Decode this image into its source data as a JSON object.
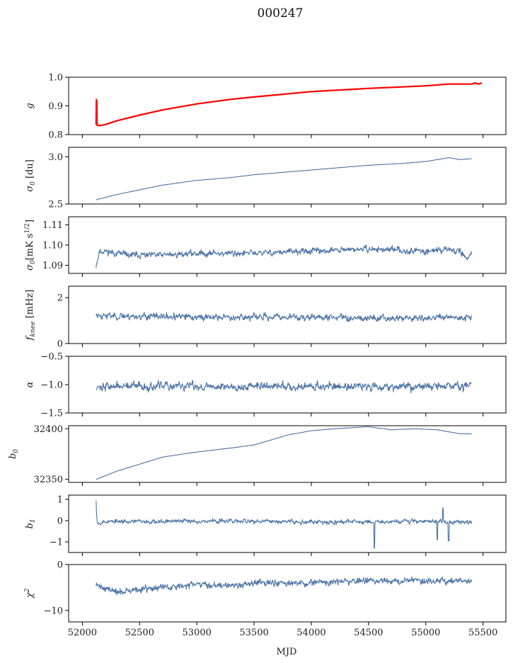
{
  "figure": {
    "title": "000247",
    "xlabel": "MJD"
  },
  "colors": {
    "series": "#4c72a4",
    "highlight": "#ff0000",
    "axis": "#000000"
  },
  "chart_data": [
    {
      "type": "line",
      "ylabel": "g",
      "ylim": [
        0.8,
        1.0
      ],
      "yticks": [
        "0.8",
        "0.9",
        "1.0"
      ],
      "xlim": [
        51880,
        55700
      ],
      "series": [
        {
          "color": "#4c72a4",
          "style": "smooth",
          "x": [
            52120,
            52150,
            52200,
            52300,
            52500,
            52700,
            53000,
            53300,
            53500,
            54000,
            54500,
            55000,
            55200,
            55400
          ],
          "y": [
            0.833,
            0.832,
            0.836,
            0.849,
            0.869,
            0.887,
            0.908,
            0.924,
            0.932,
            0.951,
            0.962,
            0.971,
            0.977,
            0.977
          ]
        },
        {
          "color": "#ff0000",
          "style": "highlight",
          "x": [
            52120,
            52122,
            52124,
            52126,
            52128,
            52132,
            52150,
            52200,
            52300,
            52500,
            52700,
            53000,
            53300,
            53500,
            54000,
            54500,
            55000,
            55200,
            55400,
            55430,
            55460,
            55490
          ],
          "y": [
            0.835,
            0.922,
            0.834,
            0.915,
            0.836,
            0.833,
            0.831,
            0.835,
            0.848,
            0.868,
            0.886,
            0.907,
            0.923,
            0.931,
            0.95,
            0.961,
            0.97,
            0.976,
            0.976,
            0.98,
            0.976,
            0.98
          ]
        }
      ]
    },
    {
      "type": "line",
      "ylabel": "σ0 [du]",
      "ylim": [
        2.5,
        3.1
      ],
      "yticks": [
        "2.5",
        "3.0"
      ],
      "xlim": [
        51880,
        55700
      ],
      "series": [
        {
          "color": "#4c72a4",
          "style": "smooth",
          "x": [
            52120,
            52300,
            52500,
            52700,
            53000,
            53300,
            53500,
            53800,
            54000,
            54300,
            54500,
            54800,
            55000,
            55200,
            55300,
            55400
          ],
          "y": [
            2.545,
            2.6,
            2.65,
            2.7,
            2.75,
            2.78,
            2.81,
            2.84,
            2.86,
            2.89,
            2.91,
            2.93,
            2.95,
            2.99,
            2.97,
            2.98
          ]
        }
      ]
    },
    {
      "type": "line",
      "ylabel": "σ0[mK s^1/2]",
      "ylim": [
        1.086,
        1.114
      ],
      "yticks": [
        "1.09",
        "1.10",
        "1.11"
      ],
      "xlim": [
        51880,
        55700
      ],
      "series": [
        {
          "color": "#4c72a4",
          "style": "noise",
          "noise": 0.0015,
          "seed": 11,
          "x": [
            52120,
            52150,
            52200,
            52400,
            52700,
            53000,
            53500,
            54000,
            54500,
            55000,
            55200,
            55300,
            55350,
            55400
          ],
          "y": [
            1.09,
            1.097,
            1.097,
            1.095,
            1.095,
            1.096,
            1.096,
            1.097,
            1.098,
            1.097,
            1.098,
            1.097,
            1.093,
            1.096
          ]
        }
      ]
    },
    {
      "type": "line",
      "ylabel": "f_knee [mHz]",
      "ylim": [
        0,
        2.5
      ],
      "yticks": [
        "0",
        "2"
      ],
      "xlim": [
        51880,
        55700
      ],
      "series": [
        {
          "color": "#4c72a4",
          "style": "noise",
          "noise": 0.14,
          "seed": 23,
          "x": [
            52120,
            52300,
            53000,
            54000,
            55000,
            55400
          ],
          "y": [
            1.25,
            1.2,
            1.15,
            1.15,
            1.1,
            1.15
          ]
        }
      ]
    },
    {
      "type": "line",
      "ylabel": "α",
      "ylim": [
        -1.5,
        -0.5
      ],
      "yticks": [
        "-1.5",
        "-1.0",
        "-0.5"
      ],
      "xlim": [
        51880,
        55700
      ],
      "series": [
        {
          "color": "#4c72a4",
          "style": "noise",
          "noise": 0.07,
          "seed": 37,
          "x": [
            52120,
            53000,
            54000,
            55000,
            55400
          ],
          "y": [
            -1.03,
            -1.03,
            -1.03,
            -1.03,
            -1.02
          ]
        }
      ]
    },
    {
      "type": "line",
      "ylabel": "b0",
      "ylim": [
        32347,
        32403
      ],
      "yticks": [
        "32350",
        "32400"
      ],
      "xlim": [
        51880,
        55700
      ],
      "series": [
        {
          "color": "#4c72a4",
          "style": "smooth",
          "x": [
            52120,
            52300,
            52500,
            52700,
            53000,
            53300,
            53500,
            53800,
            54000,
            54200,
            54500,
            54700,
            54900,
            55100,
            55300,
            55400
          ],
          "y": [
            32350,
            32358,
            32365,
            32372,
            32377,
            32381,
            32384,
            32394,
            32398,
            32400,
            32402,
            32399,
            32400,
            32399,
            32395,
            32395
          ]
        }
      ]
    },
    {
      "type": "line",
      "ylabel": "b1",
      "ylim": [
        -1.5,
        1.2
      ],
      "yticks": [
        "-1",
        "0",
        "1"
      ],
      "xlim": [
        51880,
        55700
      ],
      "series": [
        {
          "color": "#4c72a4",
          "style": "noise",
          "noise": 0.1,
          "seed": 53,
          "x": [
            52120,
            52125,
            52135,
            52200,
            53000,
            54000,
            54500,
            55000,
            55400
          ],
          "y": [
            1.0,
            0.2,
            -0.1,
            -0.05,
            -0.02,
            -0.05,
            -0.05,
            -0.02,
            -0.1
          ],
          "spikes": [
            {
              "x": 54550,
              "y": -1.3
            },
            {
              "x": 55100,
              "y": -0.9
            },
            {
              "x": 55200,
              "y": -0.95
            },
            {
              "x": 55150,
              "y": 0.6
            }
          ]
        }
      ]
    },
    {
      "type": "line",
      "ylabel": "χ²",
      "ylim": [
        -12.5,
        0
      ],
      "yticks": [
        "-10",
        "0"
      ],
      "xlim": [
        51880,
        55700
      ],
      "xticks": [
        "52000",
        "52500",
        "53000",
        "53500",
        "54000",
        "54500",
        "55000",
        "55500"
      ],
      "series": [
        {
          "color": "#4c72a4",
          "style": "noise",
          "noise": 0.7,
          "seed": 71,
          "x": [
            52120,
            52300,
            52700,
            53000,
            53500,
            54000,
            54500,
            55000,
            55400
          ],
          "y": [
            -4.5,
            -6.0,
            -5.0,
            -4.5,
            -4.2,
            -4.0,
            -3.5,
            -3.5,
            -3.5
          ]
        }
      ]
    }
  ]
}
